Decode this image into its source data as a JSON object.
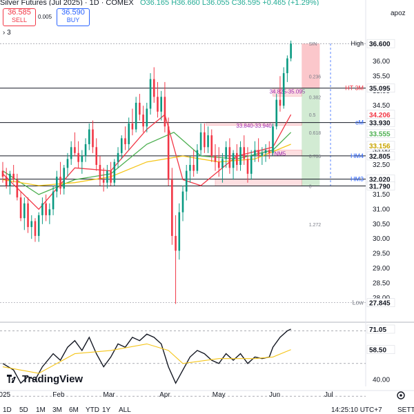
{
  "header": {
    "symbol_title": "Silver Futures (Jul 2025) · 1D · COMEX",
    "ohlc": "O36.165 H36.660 L36.055 C36.595 +0.465 (+1.29%)",
    "price_scale_label": "apoz"
  },
  "trade": {
    "sell_price": "36.585",
    "sell_label": "SELL",
    "buy_price": "36.590",
    "buy_label": "BUY",
    "spread": "0.005"
  },
  "indicators_count": "3",
  "logo_text": "TradingView",
  "bottom_bar": {
    "ranges": [
      "1D",
      "5D",
      "1M",
      "3M",
      "6M",
      "YTD",
      "1Y",
      "ALL"
    ],
    "time": "14:25:10 UTC+7",
    "adj": "SETT"
  },
  "chart_data": {
    "type": "candlestick",
    "price_axis": {
      "ylim": [
        27.3,
        37.0
      ],
      "ticks": [
        28.0,
        28.5,
        29.0,
        29.5,
        30.0,
        30.5,
        31.0,
        31.5,
        32.0,
        32.5,
        33.0,
        33.5,
        34.0,
        34.5,
        35.0,
        35.5,
        36.0
      ]
    },
    "time_axis": {
      "labels": [
        "2025",
        "Feb",
        "Mar",
        "Apr",
        "May",
        "Jun",
        "Jul"
      ],
      "label_days": [
        0,
        31,
        59,
        90,
        120,
        151,
        181
      ]
    },
    "candles": [
      {
        "d": 0,
        "o": 32.3,
        "h": 32.6,
        "l": 31.9,
        "c": 32.1
      },
      {
        "d": 2,
        "o": 32.1,
        "h": 32.4,
        "l": 31.7,
        "c": 31.8
      },
      {
        "d": 4,
        "o": 31.8,
        "h": 32.3,
        "l": 31.5,
        "c": 32.2
      },
      {
        "d": 6,
        "o": 32.2,
        "h": 32.5,
        "l": 31.9,
        "c": 32.0
      },
      {
        "d": 8,
        "o": 32.0,
        "h": 32.2,
        "l": 31.3,
        "c": 31.4
      },
      {
        "d": 10,
        "o": 31.4,
        "h": 31.6,
        "l": 30.6,
        "c": 30.7
      },
      {
        "d": 12,
        "o": 30.7,
        "h": 31.4,
        "l": 30.3,
        "c": 31.2
      },
      {
        "d": 14,
        "o": 31.2,
        "h": 31.4,
        "l": 30.2,
        "c": 30.4
      },
      {
        "d": 16,
        "o": 30.4,
        "h": 30.8,
        "l": 30.0,
        "c": 30.6
      },
      {
        "d": 18,
        "o": 30.6,
        "h": 30.7,
        "l": 29.9,
        "c": 30.1
      },
      {
        "d": 20,
        "o": 30.1,
        "h": 30.9,
        "l": 29.9,
        "c": 30.8
      },
      {
        "d": 22,
        "o": 30.8,
        "h": 31.4,
        "l": 30.5,
        "c": 31.2
      },
      {
        "d": 24,
        "o": 31.2,
        "h": 31.5,
        "l": 30.6,
        "c": 30.8
      },
      {
        "d": 26,
        "o": 30.8,
        "h": 31.2,
        "l": 30.5,
        "c": 31.0
      },
      {
        "d": 28,
        "o": 31.0,
        "h": 31.8,
        "l": 30.8,
        "c": 31.6
      },
      {
        "d": 30,
        "o": 31.6,
        "h": 32.3,
        "l": 31.4,
        "c": 32.1
      },
      {
        "d": 32,
        "o": 32.1,
        "h": 32.6,
        "l": 31.5,
        "c": 31.7
      },
      {
        "d": 34,
        "o": 31.7,
        "h": 32.5,
        "l": 31.5,
        "c": 32.4
      },
      {
        "d": 36,
        "o": 32.4,
        "h": 32.9,
        "l": 32.1,
        "c": 32.7
      },
      {
        "d": 38,
        "o": 32.7,
        "h": 33.3,
        "l": 32.5,
        "c": 33.1
      },
      {
        "d": 40,
        "o": 33.1,
        "h": 33.6,
        "l": 32.8,
        "c": 32.9
      },
      {
        "d": 42,
        "o": 32.9,
        "h": 33.3,
        "l": 32.4,
        "c": 32.6
      },
      {
        "d": 44,
        "o": 32.6,
        "h": 33.0,
        "l": 32.2,
        "c": 32.8
      },
      {
        "d": 46,
        "o": 32.8,
        "h": 33.4,
        "l": 32.6,
        "c": 33.2
      },
      {
        "d": 48,
        "o": 33.2,
        "h": 33.9,
        "l": 33.0,
        "c": 33.7
      },
      {
        "d": 50,
        "o": 33.7,
        "h": 34.0,
        "l": 32.9,
        "c": 33.1
      },
      {
        "d": 52,
        "o": 33.1,
        "h": 33.4,
        "l": 32.3,
        "c": 32.5
      },
      {
        "d": 54,
        "o": 32.5,
        "h": 32.8,
        "l": 31.8,
        "c": 32.0
      },
      {
        "d": 56,
        "o": 32.0,
        "h": 32.4,
        "l": 31.6,
        "c": 31.9
      },
      {
        "d": 58,
        "o": 31.9,
        "h": 32.5,
        "l": 31.7,
        "c": 32.3
      },
      {
        "d": 60,
        "o": 32.3,
        "h": 32.6,
        "l": 31.8,
        "c": 31.9
      },
      {
        "d": 62,
        "o": 31.9,
        "h": 32.7,
        "l": 31.8,
        "c": 32.6
      },
      {
        "d": 64,
        "o": 32.6,
        "h": 33.1,
        "l": 32.4,
        "c": 32.9
      },
      {
        "d": 66,
        "o": 32.9,
        "h": 33.5,
        "l": 32.7,
        "c": 33.4
      },
      {
        "d": 68,
        "o": 33.4,
        "h": 33.8,
        "l": 33.0,
        "c": 33.2
      },
      {
        "d": 70,
        "o": 33.2,
        "h": 34.1,
        "l": 33.0,
        "c": 33.9
      },
      {
        "d": 72,
        "o": 33.9,
        "h": 34.4,
        "l": 33.5,
        "c": 33.7
      },
      {
        "d": 74,
        "o": 33.7,
        "h": 34.8,
        "l": 33.6,
        "c": 34.6
      },
      {
        "d": 76,
        "o": 34.6,
        "h": 34.9,
        "l": 34.0,
        "c": 34.2
      },
      {
        "d": 78,
        "o": 34.2,
        "h": 34.5,
        "l": 33.6,
        "c": 33.8
      },
      {
        "d": 80,
        "o": 33.8,
        "h": 34.6,
        "l": 33.6,
        "c": 34.4
      },
      {
        "d": 82,
        "o": 34.4,
        "h": 35.6,
        "l": 34.2,
        "c": 35.4
      },
      {
        "d": 84,
        "o": 35.4,
        "h": 35.8,
        "l": 34.6,
        "c": 34.8
      },
      {
        "d": 86,
        "o": 34.8,
        "h": 35.3,
        "l": 34.1,
        "c": 34.3
      },
      {
        "d": 88,
        "o": 34.3,
        "h": 35.0,
        "l": 34.0,
        "c": 34.8
      },
      {
        "d": 90,
        "o": 34.8,
        "h": 35.3,
        "l": 33.6,
        "c": 33.8
      },
      {
        "d": 92,
        "o": 33.8,
        "h": 34.1,
        "l": 31.8,
        "c": 32.0
      },
      {
        "d": 94,
        "o": 32.0,
        "h": 32.4,
        "l": 29.8,
        "c": 30.1
      },
      {
        "d": 96,
        "o": 30.1,
        "h": 30.8,
        "l": 27.8,
        "c": 29.6
      },
      {
        "d": 98,
        "o": 29.6,
        "h": 31.2,
        "l": 29.3,
        "c": 30.9
      },
      {
        "d": 100,
        "o": 30.9,
        "h": 31.8,
        "l": 30.6,
        "c": 31.6
      },
      {
        "d": 102,
        "o": 31.6,
        "h": 32.5,
        "l": 31.3,
        "c": 32.3
      },
      {
        "d": 104,
        "o": 32.3,
        "h": 32.8,
        "l": 31.9,
        "c": 32.5
      },
      {
        "d": 106,
        "o": 32.5,
        "h": 33.0,
        "l": 32.1,
        "c": 32.3
      },
      {
        "d": 108,
        "o": 32.3,
        "h": 33.2,
        "l": 32.2,
        "c": 33.0
      },
      {
        "d": 110,
        "o": 33.0,
        "h": 33.9,
        "l": 32.8,
        "c": 33.6
      },
      {
        "d": 112,
        "o": 33.6,
        "h": 33.9,
        "l": 32.9,
        "c": 33.1
      },
      {
        "d": 114,
        "o": 33.1,
        "h": 33.8,
        "l": 32.9,
        "c": 33.5
      },
      {
        "d": 116,
        "o": 33.5,
        "h": 33.7,
        "l": 32.6,
        "c": 32.8
      },
      {
        "d": 118,
        "o": 32.8,
        "h": 33.2,
        "l": 32.3,
        "c": 32.6
      },
      {
        "d": 120,
        "o": 32.6,
        "h": 33.1,
        "l": 32.1,
        "c": 32.4
      },
      {
        "d": 122,
        "o": 32.4,
        "h": 32.9,
        "l": 31.9,
        "c": 32.7
      },
      {
        "d": 124,
        "o": 32.7,
        "h": 33.3,
        "l": 32.4,
        "c": 33.1
      },
      {
        "d": 126,
        "o": 33.1,
        "h": 33.4,
        "l": 32.2,
        "c": 32.4
      },
      {
        "d": 128,
        "o": 32.4,
        "h": 33.0,
        "l": 32.0,
        "c": 32.9
      },
      {
        "d": 130,
        "o": 32.9,
        "h": 33.2,
        "l": 32.3,
        "c": 32.5
      },
      {
        "d": 132,
        "o": 32.5,
        "h": 33.3,
        "l": 32.3,
        "c": 33.1
      },
      {
        "d": 134,
        "o": 33.1,
        "h": 33.5,
        "l": 32.5,
        "c": 32.7
      },
      {
        "d": 136,
        "o": 32.7,
        "h": 33.1,
        "l": 31.9,
        "c": 32.2
      },
      {
        "d": 138,
        "o": 32.2,
        "h": 33.0,
        "l": 32.0,
        "c": 32.8
      },
      {
        "d": 140,
        "o": 32.8,
        "h": 33.3,
        "l": 32.6,
        "c": 33.0
      },
      {
        "d": 142,
        "o": 33.0,
        "h": 33.4,
        "l": 32.6,
        "c": 32.8
      },
      {
        "d": 144,
        "o": 32.8,
        "h": 33.1,
        "l": 32.5,
        "c": 32.9
      },
      {
        "d": 146,
        "o": 32.9,
        "h": 33.2,
        "l": 32.6,
        "c": 33.0
      },
      {
        "d": 148,
        "o": 33.0,
        "h": 33.3,
        "l": 32.7,
        "c": 32.9
      },
      {
        "d": 150,
        "o": 32.9,
        "h": 33.9,
        "l": 32.8,
        "c": 33.8
      },
      {
        "d": 152,
        "o": 33.8,
        "h": 34.9,
        "l": 33.7,
        "c": 34.7
      },
      {
        "d": 154,
        "o": 34.7,
        "h": 35.5,
        "l": 34.3,
        "c": 34.5
      },
      {
        "d": 156,
        "o": 34.5,
        "h": 35.8,
        "l": 34.4,
        "c": 35.6
      },
      {
        "d": 158,
        "o": 35.6,
        "h": 36.2,
        "l": 35.3,
        "c": 36.1
      },
      {
        "d": 160,
        "o": 36.1,
        "h": 36.7,
        "l": 36.0,
        "c": 36.6
      }
    ],
    "moving_averages": [
      {
        "color": "#f23645",
        "points": [
          [
            0,
            32.2
          ],
          [
            20,
            31.0
          ],
          [
            40,
            32.4
          ],
          [
            60,
            32.3
          ],
          [
            80,
            33.7
          ],
          [
            90,
            34.2
          ],
          [
            100,
            32.0
          ],
          [
            110,
            31.8
          ],
          [
            130,
            32.8
          ],
          [
            150,
            33.1
          ],
          [
            160,
            34.2
          ]
        ]
      },
      {
        "color": "#4caf50",
        "points": [
          [
            0,
            32.3
          ],
          [
            20,
            31.5
          ],
          [
            40,
            32.0
          ],
          [
            60,
            32.2
          ],
          [
            80,
            33.2
          ],
          [
            95,
            33.6
          ],
          [
            110,
            32.8
          ],
          [
            130,
            32.7
          ],
          [
            150,
            33.0
          ],
          [
            160,
            33.6
          ]
        ]
      },
      {
        "color": "#f5c518",
        "points": [
          [
            0,
            32.0
          ],
          [
            20,
            31.8
          ],
          [
            40,
            31.9
          ],
          [
            60,
            32.1
          ],
          [
            80,
            32.6
          ],
          [
            100,
            32.8
          ],
          [
            120,
            32.6
          ],
          [
            140,
            32.7
          ],
          [
            160,
            33.2
          ]
        ]
      }
    ],
    "levels": [
      {
        "price": 36.6,
        "label": "High",
        "color": "#131722"
      },
      {
        "price": 35.095,
        "label": "HT 3M",
        "color": "#f23645"
      },
      {
        "price": 33.93,
        "label": "cM",
        "color": "#2962ff"
      },
      {
        "price": 32.805,
        "label": "HM4",
        "color": "#2962ff"
      },
      {
        "price": 32.02,
        "label": "HM3",
        "color": "#2962ff"
      },
      {
        "price": 31.79,
        "label": "",
        "color": "#131722"
      },
      {
        "price": 27.845,
        "label": "Low",
        "color": "#787b86"
      }
    ],
    "zones": [
      {
        "label": "34.825-35.095",
        "from_day": 150,
        "to_day": 166,
        "low": 34.825,
        "high": 35.095
      },
      {
        "label": "33.840-33.940",
        "from_day": 113,
        "to_day": 166,
        "low": 33.84,
        "high": 33.94
      },
      {
        "label": "TNM5",
        "from_day": 140,
        "to_day": 166,
        "low": 32.805,
        "high": 33.0
      },
      {
        "label": "",
        "from_day": 118,
        "to_day": 166,
        "low": 31.79,
        "high": 32.02
      }
    ],
    "fib_labels": [
      {
        "value": "0.236",
        "price": 35.5
      },
      {
        "value": "0.382",
        "price": 34.8
      },
      {
        "value": "0.5",
        "price": 34.2
      },
      {
        "value": "0.618",
        "price": 33.6
      },
      {
        "value": "0.786",
        "price": 32.8
      },
      {
        "value": "0",
        "price": 31.79
      },
      {
        "value": "1.272",
        "price": 30.5
      },
      {
        "value": "SIN",
        "price": 36.6
      }
    ],
    "price_labels": [
      {
        "text": "36.600",
        "price": 36.6,
        "bg": "#ffffff",
        "fg": "#131722"
      },
      {
        "text": "35.095",
        "price": 35.095,
        "bg": "#ffffff",
        "fg": "#131722"
      },
      {
        "text": "34.206",
        "price": 34.206,
        "bg": "#ffffff",
        "fg": "#f23645"
      },
      {
        "text": "33.930",
        "price": 33.93,
        "bg": "#ffffff",
        "fg": "#131722"
      },
      {
        "text": "33.555",
        "price": 33.555,
        "bg": "#ffffff",
        "fg": "#4caf50"
      },
      {
        "text": "33.156",
        "price": 33.156,
        "bg": "#ffffff",
        "fg": "#c9a400"
      },
      {
        "text": "32.805",
        "price": 32.805,
        "bg": "#ffffff",
        "fg": "#131722"
      },
      {
        "text": "32.020",
        "price": 32.02,
        "bg": "#ffffff",
        "fg": "#131722"
      },
      {
        "text": "31.790",
        "price": 31.79,
        "bg": "#ffffff",
        "fg": "#131722"
      },
      {
        "text": "27.845",
        "price": 27.845,
        "bg": "#ffffff",
        "fg": "#131722"
      }
    ],
    "rsi": {
      "ylim": [
        36,
        74
      ],
      "ticks": [
        40.0
      ],
      "bands": [
        70,
        50,
        30
      ],
      "labels": [
        {
          "text": "71.05",
          "value": 71.05
        },
        {
          "text": "58.50",
          "value": 58.5
        }
      ],
      "rsi_points": [
        [
          0,
          50
        ],
        [
          6,
          46
        ],
        [
          10,
          38
        ],
        [
          14,
          42
        ],
        [
          18,
          40
        ],
        [
          22,
          48
        ],
        [
          28,
          56
        ],
        [
          32,
          52
        ],
        [
          36,
          60
        ],
        [
          40,
          64
        ],
        [
          44,
          58
        ],
        [
          48,
          66
        ],
        [
          52,
          56
        ],
        [
          56,
          48
        ],
        [
          60,
          54
        ],
        [
          64,
          62
        ],
        [
          68,
          60
        ],
        [
          72,
          66
        ],
        [
          76,
          64
        ],
        [
          80,
          68
        ],
        [
          84,
          66
        ],
        [
          88,
          62
        ],
        [
          92,
          48
        ],
        [
          96,
          38
        ],
        [
          100,
          46
        ],
        [
          104,
          54
        ],
        [
          108,
          58
        ],
        [
          112,
          56
        ],
        [
          116,
          52
        ],
        [
          120,
          50
        ],
        [
          124,
          56
        ],
        [
          128,
          52
        ],
        [
          132,
          56
        ],
        [
          136,
          50
        ],
        [
          140,
          54
        ],
        [
          144,
          53
        ],
        [
          148,
          54
        ],
        [
          150,
          60
        ],
        [
          154,
          66
        ],
        [
          158,
          70
        ],
        [
          160,
          71.05
        ]
      ],
      "signal_points": [
        [
          0,
          48
        ],
        [
          20,
          44
        ],
        [
          40,
          56
        ],
        [
          60,
          58
        ],
        [
          80,
          62
        ],
        [
          92,
          58
        ],
        [
          100,
          50
        ],
        [
          120,
          53
        ],
        [
          140,
          53
        ],
        [
          150,
          54
        ],
        [
          160,
          58.5
        ]
      ]
    }
  }
}
